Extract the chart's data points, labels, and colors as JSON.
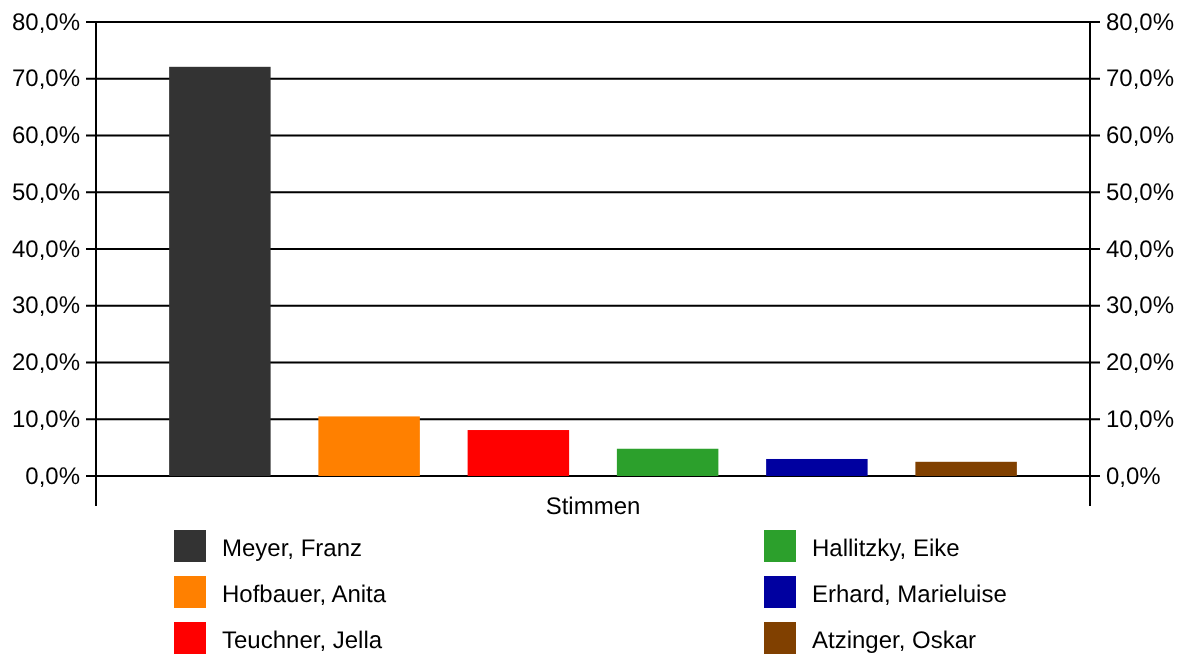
{
  "chart_data": {
    "type": "bar",
    "categories": [
      "Stimmen"
    ],
    "series": [
      {
        "name": "Meyer, Franz",
        "color": "#333333",
        "values": [
          72.1
        ]
      },
      {
        "name": "Hofbauer, Anita",
        "color": "#ff8000",
        "values": [
          10.5
        ]
      },
      {
        "name": "Teuchner, Jella",
        "color": "#ff0000",
        "values": [
          8.1
        ]
      },
      {
        "name": "Hallitzky, Eike",
        "color": "#2ca02c",
        "values": [
          4.8
        ]
      },
      {
        "name": "Erhard, Marieluise",
        "color": "#0000a0",
        "values": [
          3.0
        ]
      },
      {
        "name": "Atzinger, Oskar",
        "color": "#804000",
        "values": [
          2.5
        ]
      }
    ],
    "ylim": [
      0,
      80
    ],
    "yticks": [
      {
        "value": 0,
        "label": "0,0%"
      },
      {
        "value": 10,
        "label": "10,0%"
      },
      {
        "value": 20,
        "label": "20,0%"
      },
      {
        "value": 30,
        "label": "30,0%"
      },
      {
        "value": 40,
        "label": "40,0%"
      },
      {
        "value": 50,
        "label": "50,0%"
      },
      {
        "value": 60,
        "label": "60,0%"
      },
      {
        "value": 70,
        "label": "70,0%"
      },
      {
        "value": 80,
        "label": "80,0%"
      }
    ],
    "grid": "y",
    "legend": "bottom"
  }
}
